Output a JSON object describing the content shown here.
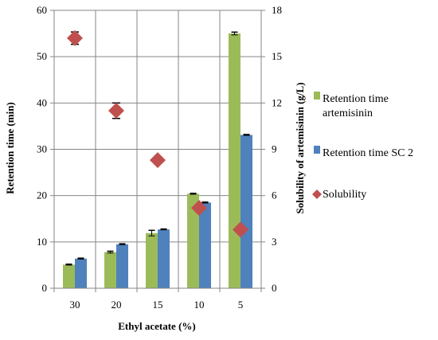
{
  "chart_data": {
    "type": "bar",
    "categories": [
      "30",
      "20",
      "15",
      "10",
      "5"
    ],
    "xlabel": "Ethyl acetate (%)",
    "ylabel": "Retention time  (min)",
    "y2label": "Solubility of artemisinin (g/L)",
    "ylim": [
      0,
      60
    ],
    "y2lim": [
      0,
      18
    ],
    "yticks": [
      "0",
      "10",
      "20",
      "30",
      "40",
      "50",
      "60"
    ],
    "y2ticks": [
      "0",
      "3",
      "6",
      "9",
      "12",
      "15",
      "18"
    ],
    "grid": true,
    "legend_position": "right",
    "series": [
      {
        "name": "Retention time artemisinin",
        "kind": "bar",
        "axis": "left",
        "color": "#9bbb59",
        "values": [
          5.1,
          7.8,
          11.9,
          20.4,
          55.0
        ],
        "errors": [
          0.1,
          0.2,
          0.6,
          0.1,
          0.3
        ]
      },
      {
        "name": "Retention time SC 2",
        "kind": "bar",
        "axis": "left",
        "color": "#4f81bd",
        "values": [
          6.4,
          9.5,
          12.7,
          18.5,
          33.1
        ],
        "errors": [
          0.1,
          0.1,
          0.1,
          0.1,
          0.1
        ]
      },
      {
        "name": "Solubility",
        "kind": "marker",
        "axis": "right",
        "color": "#c0504d",
        "values": [
          16.2,
          11.5,
          8.3,
          5.2,
          3.8
        ],
        "errors": [
          0.4,
          0.5,
          0,
          0,
          0
        ]
      }
    ]
  }
}
